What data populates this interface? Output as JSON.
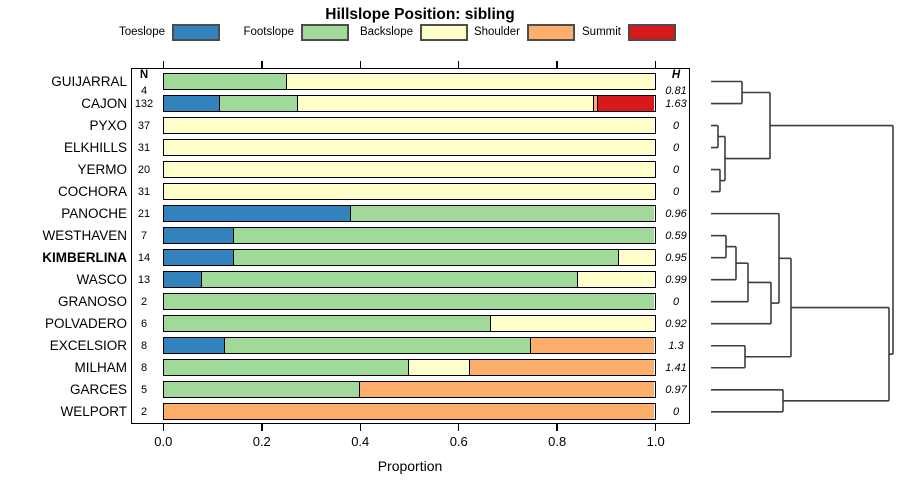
{
  "title": "Hillslope Position: sibling",
  "legend": [
    {
      "label": "Toeslope",
      "color": "#3182BD"
    },
    {
      "label": "Footslope",
      "color": "#A1D99B"
    },
    {
      "label": "Backslope",
      "color": "#FFFFCC"
    },
    {
      "label": "Shoulder",
      "color": "#FDAE6B"
    },
    {
      "label": "Summit",
      "color": "#D7191C"
    }
  ],
  "columns": {
    "n_header": "N",
    "h_header": "H"
  },
  "axis": {
    "tick_labels": [
      "0.0",
      "0.2",
      "0.4",
      "0.6",
      "0.8",
      "1.0"
    ],
    "tick_values": [
      0,
      0.2,
      0.4,
      0.6,
      0.8,
      1.0
    ],
    "label": "Proportion"
  },
  "chart_data": {
    "type": "bar",
    "stacked": true,
    "orientation": "horizontal",
    "title": "Hillslope Position: sibling",
    "xlabel": "Proportion",
    "xlim": [
      0,
      1
    ],
    "categories": [
      "GUIJARRAL",
      "CAJON",
      "PYXO",
      "ELKHILLS",
      "YERMO",
      "COCHORA",
      "PANOCHE",
      "WESTHAVEN",
      "KIMBERLINA",
      "WASCO",
      "GRANOSO",
      "POLVADERO",
      "EXCELSIOR",
      "MILHAM",
      "GARCES",
      "WELPORT"
    ],
    "bold_category_index": 8,
    "n_values": [
      4,
      132,
      37,
      31,
      20,
      31,
      21,
      7,
      14,
      13,
      2,
      6,
      8,
      8,
      5,
      2
    ],
    "h_values": [
      "0.81",
      "1.63",
      "0",
      "0",
      "0",
      "0",
      "0.96",
      "0.59",
      "0.95",
      "0.99",
      "0",
      "0.92",
      "1.3",
      "1.41",
      "0.97",
      "0"
    ],
    "series": [
      {
        "name": "Toeslope",
        "color": "#3182BD",
        "values": [
          0,
          0.1136,
          0,
          0,
          0,
          0,
          0.381,
          0.1429,
          0.1429,
          0.0769,
          0,
          0,
          0.125,
          0,
          0,
          0
        ]
      },
      {
        "name": "Footslope",
        "color": "#A1D99B",
        "values": [
          0.25,
          0.1591,
          0,
          0,
          0,
          0,
          0.619,
          0.8571,
          0.7857,
          0.7692,
          1,
          0.6667,
          0.625,
          0.5,
          0.4,
          0
        ]
      },
      {
        "name": "Backslope",
        "color": "#FFFFCC",
        "values": [
          0.75,
          0.6061,
          1,
          1,
          1,
          1,
          0,
          0,
          0.0714,
          0.1539,
          0,
          0.3333,
          0,
          0.125,
          0,
          0
        ]
      },
      {
        "name": "Shoulder",
        "color": "#FDAE6B",
        "values": [
          0,
          0.0076,
          0,
          0,
          0,
          0,
          0,
          0,
          0,
          0,
          0,
          0,
          0.25,
          0.375,
          0.6,
          1
        ]
      },
      {
        "name": "Summit",
        "color": "#D7191C",
        "values": [
          0,
          0.1136,
          0,
          0,
          0,
          0,
          0,
          0,
          0,
          0,
          0,
          0,
          0,
          0,
          0,
          0
        ]
      }
    ],
    "dendrogram": {
      "h": 182,
      "c": [
        {
          "h": 59,
          "c": [
            {
              "h": 31,
              "c": [
                {
                  "leaf": 0
                },
                {
                  "leaf": 1
                }
              ]
            },
            {
              "h": 14,
              "c": [
                {
                  "h": 7,
                  "c": [
                    {
                      "leaf": 2
                    },
                    {
                      "leaf": 3
                    }
                  ]
                },
                {
                  "h": 9,
                  "c": [
                    {
                      "leaf": 4
                    },
                    {
                      "leaf": 5
                    }
                  ]
                }
              ]
            }
          ]
        },
        {
          "h": 178,
          "c": [
            {
              "h": 80,
              "c": [
                {
                  "h": 68,
                  "c": [
                    {
                      "leaf": 6
                    },
                    {
                      "h": 60,
                      "c": [
                        {
                          "h": 37,
                          "c": [
                            {
                              "h": 25,
                              "c": [
                                {
                                  "h": 15,
                                  "c": [
                                    {
                                      "leaf": 7
                                    },
                                    {
                                      "leaf": 8
                                    }
                                  ]
                                },
                                {
                                  "leaf": 9
                                }
                              ]
                            },
                            {
                              "leaf": 10
                            }
                          ]
                        },
                        {
                          "leaf": 11
                        }
                      ]
                    }
                  ]
                },
                {
                  "h": 34,
                  "c": [
                    {
                      "leaf": 12
                    },
                    {
                      "leaf": 13
                    }
                  ]
                }
              ]
            },
            {
              "h": 72,
              "c": [
                {
                  "leaf": 14
                },
                {
                  "leaf": 15
                }
              ]
            }
          ]
        }
      ]
    }
  }
}
